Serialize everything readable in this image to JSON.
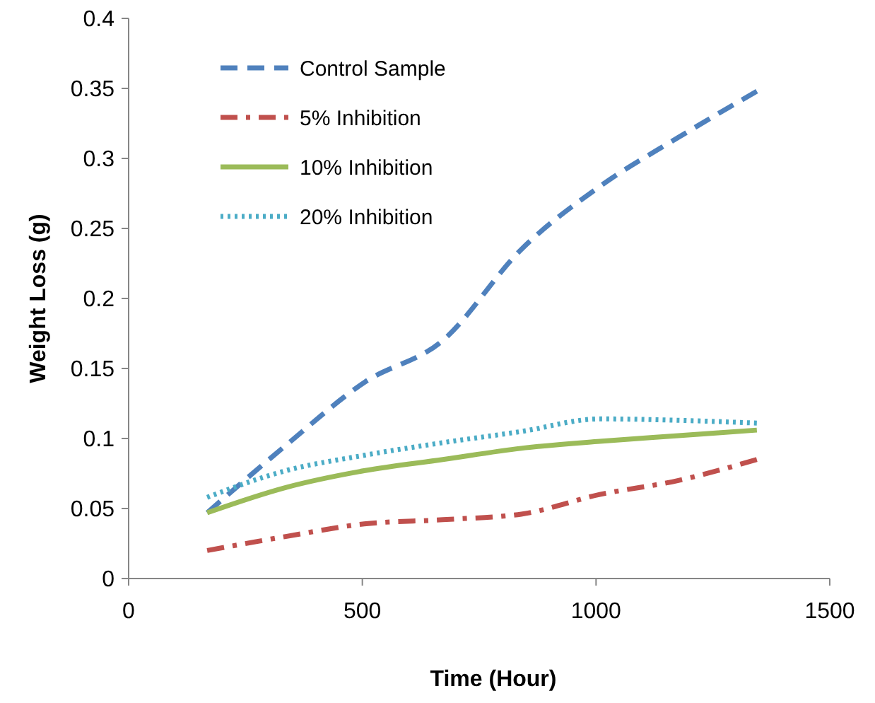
{
  "chart_data": {
    "type": "line",
    "xlabel": "Time (Hour)",
    "ylabel": "Weight Loss (g)",
    "x": [
      168,
      336,
      504,
      672,
      840,
      1008,
      1176,
      1344
    ],
    "xlim": [
      0,
      1500
    ],
    "xticks": [
      0,
      500,
      1000,
      1500
    ],
    "ylim": [
      0,
      0.4
    ],
    "yticks": [
      0,
      0.05,
      0.1,
      0.15,
      0.2,
      0.25,
      0.3,
      0.35,
      0.4
    ],
    "grid": false,
    "legend": "top left",
    "series": [
      {
        "name": "Control Sample",
        "color": "#4f81bd",
        "line_style": "dashed",
        "values": [
          0.047,
          0.095,
          0.14,
          0.17,
          0.235,
          0.28,
          0.315,
          0.348
        ]
      },
      {
        "name": "5% Inhibition",
        "color": "#c0504d",
        "line_style": "dashdot",
        "values": [
          0.02,
          0.03,
          0.039,
          0.042,
          0.046,
          0.06,
          0.07,
          0.085
        ]
      },
      {
        "name": "10% Inhibition",
        "color": "#9bbb59",
        "line_style": "solid",
        "values": [
          0.047,
          0.065,
          0.077,
          0.085,
          0.093,
          0.098,
          0.102,
          0.106
        ]
      },
      {
        "name": "20% Inhibition",
        "color": "#4bacc6",
        "line_style": "dotted",
        "values": [
          0.058,
          0.077,
          0.088,
          0.097,
          0.105,
          0.114,
          0.113,
          0.111
        ]
      }
    ]
  }
}
